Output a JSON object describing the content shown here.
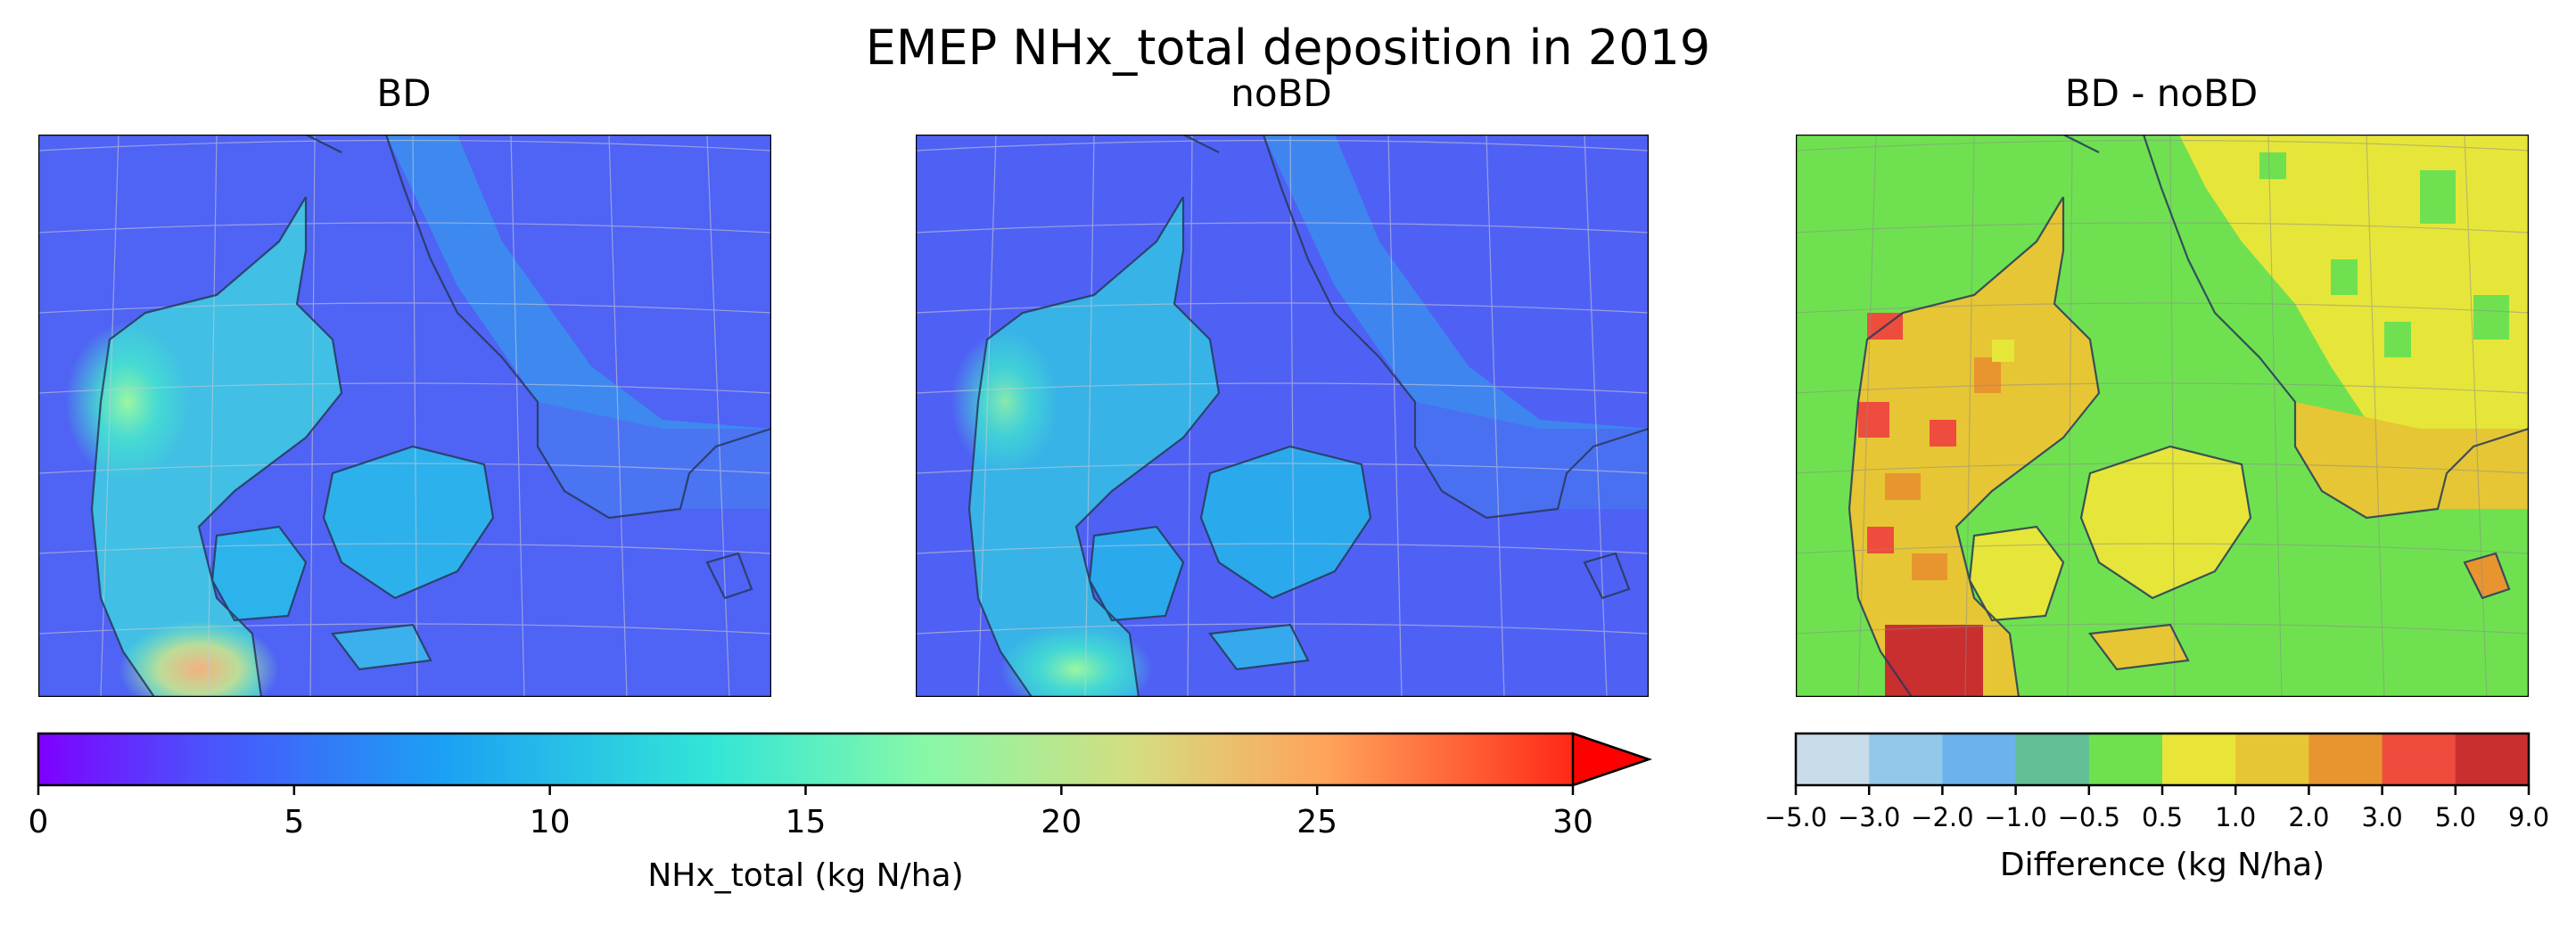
{
  "figure": {
    "title": "EMEP NHx_total deposition in 2019",
    "panels": [
      {
        "title": "BD"
      },
      {
        "title": "noBD"
      },
      {
        "title": "BD - noBD"
      }
    ],
    "colorbar_left": {
      "label": "NHx_total (kg N/ha)",
      "ticks": [
        "0",
        "5",
        "10",
        "15",
        "20",
        "25",
        "30"
      ],
      "colormap": "rainbow",
      "extend": "max"
    },
    "colorbar_right": {
      "label": "Difference (kg N/ha)",
      "ticks": [
        "−5.0",
        "−3.0",
        "−2.0",
        "−1.0",
        "−0.5",
        "0.5",
        "1.0",
        "2.0",
        "3.0",
        "5.0",
        "9.0"
      ],
      "colors": [
        "#c8dbe8",
        "#94c8ea",
        "#6cb2ec",
        "#63bf95",
        "#6fe150",
        "#e8e438",
        "#e6c634",
        "#e89530",
        "#ee4d3d",
        "#c92f2f"
      ]
    }
  },
  "chart_data": [
    {
      "type": "heatmap",
      "title": "BD",
      "variable": "NHx_total deposition",
      "units": "kg N/ha",
      "colorbar_range": [
        0,
        30
      ],
      "approx_values": {
        "open_sea": 4,
        "land_typical": 10,
        "coastal_sweden": 8,
        "max_south_jutland": 20
      }
    },
    {
      "type": "heatmap",
      "title": "noBD",
      "variable": "NHx_total deposition",
      "units": "kg N/ha",
      "colorbar_range": [
        0,
        30
      ],
      "approx_values": {
        "open_sea": 4,
        "land_typical": 9,
        "coastal_sweden": 7,
        "max_south_jutland": 19
      }
    },
    {
      "type": "heatmap",
      "title": "BD - noBD",
      "variable": "Difference",
      "units": "kg N/ha",
      "bins": [
        -5.0,
        -3.0,
        -2.0,
        -1.0,
        -0.5,
        0.5,
        1.0,
        2.0,
        3.0,
        5.0,
        9.0
      ],
      "approx_values": {
        "sea": 0,
        "land_typical": 1.5,
        "west_jutland": 3.5,
        "south_jutland_max": 6
      }
    }
  ]
}
